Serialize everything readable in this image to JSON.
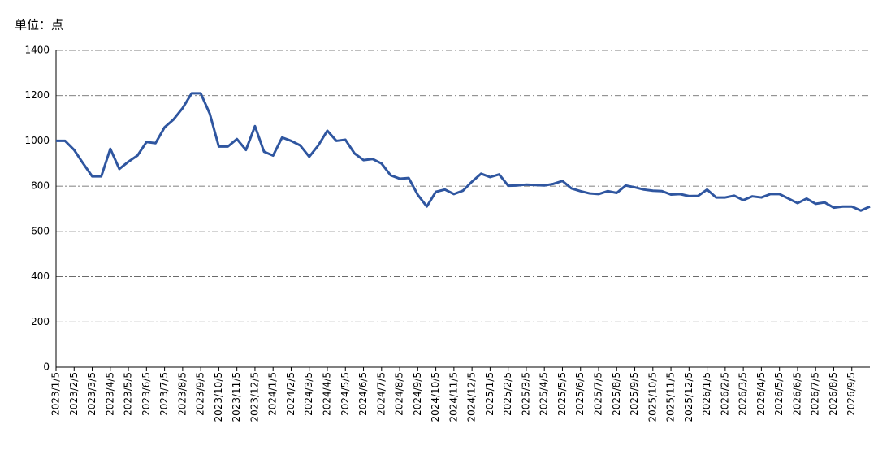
{
  "chart_data": {
    "type": "line",
    "title": "单位：点",
    "categories": [
      "2023/1/5",
      null,
      "2023/2/5",
      null,
      "2023/3/5",
      null,
      "2023/4/5",
      null,
      "2023/5/5",
      null,
      "2023/6/5",
      null,
      "2023/7/5",
      null,
      "2023/8/5",
      null,
      "2023/9/5",
      null,
      "2023/10/5",
      null,
      "2023/11/5",
      null,
      "2023/12/5",
      null,
      "2024/1/5",
      null,
      "2024/2/5",
      null,
      "2024/3/5",
      null,
      "2024/4/5",
      null,
      "2024/5/5",
      null,
      "2024/6/5",
      null,
      "2024/7/5",
      null,
      "2024/8/5",
      null,
      "2024/9/5",
      null,
      "2024/10/5",
      null,
      "2024/11/5",
      null,
      "2024/12/5",
      null,
      "2025/1/5",
      null,
      "2025/2/5",
      null,
      "2025/3/5",
      null,
      "2025/4/5",
      null,
      "2025/5/5",
      null,
      "2025/6/5",
      null,
      "2025/7/5",
      null,
      "2025/8/5",
      null,
      "2025/9/5",
      null,
      "2025/10/5",
      null,
      "2025/11/5",
      null,
      "2025/12/5",
      null,
      "2026/1/5",
      null,
      "2026/2/5",
      null,
      "2026/3/5",
      null,
      "2026/4/5",
      null,
      "2026/5/5",
      null,
      "2026/6/5",
      null,
      "2026/7/5",
      null,
      "2026/8/5",
      null,
      "2026/9/5",
      null,
      null
    ],
    "values": [
      1000,
      1000,
      960,
      900,
      843,
      843,
      965,
      876,
      908,
      935,
      995,
      990,
      1060,
      1095,
      1145,
      1210,
      1210,
      1120,
      975,
      975,
      1008,
      960,
      1065,
      952,
      935,
      1015,
      1000,
      980,
      930,
      980,
      1045,
      1000,
      1005,
      945,
      915,
      920,
      900,
      848,
      833,
      836,
      762,
      710,
      775,
      785,
      765,
      780,
      820,
      855,
      840,
      852,
      802,
      803,
      807,
      805,
      803,
      810,
      823,
      790,
      778,
      768,
      765,
      778,
      770,
      803,
      795,
      785,
      780,
      778,
      763,
      765,
      756,
      757,
      785,
      750,
      750,
      758,
      738,
      755,
      750,
      765,
      765,
      745,
      725,
      745,
      722,
      728,
      705,
      710,
      710,
      692,
      710
    ],
    "color": "#2f56a0",
    "ylim": [
      0,
      1400
    ],
    "yticks": [
      0,
      200,
      400,
      600,
      800,
      1000,
      1200,
      1400
    ],
    "grid": true
  }
}
